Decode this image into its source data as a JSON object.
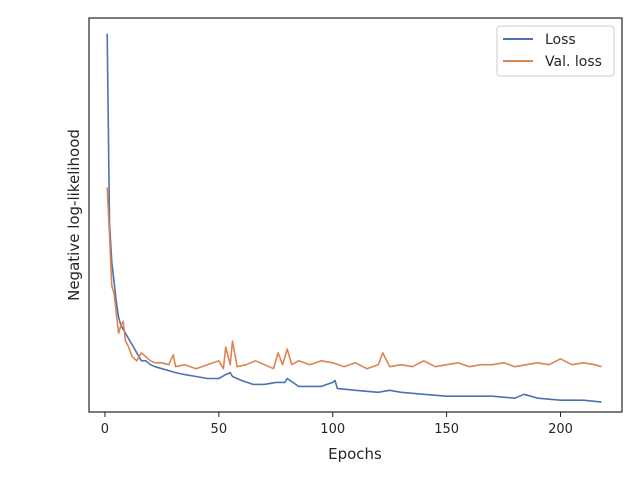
{
  "chart_data": {
    "type": "line",
    "title": "",
    "xlabel": "Epochs",
    "ylabel": "Negative log-likelihood",
    "xlim": [
      -7,
      227
    ],
    "ylim": [
      0,
      100
    ],
    "xticks": [
      0,
      50,
      100,
      150,
      200
    ],
    "yticks": [],
    "grid": false,
    "legend_position": "top-right",
    "series": [
      {
        "name": "Loss",
        "color": "#4c72b0",
        "x": [
          1,
          2,
          3,
          4,
          5,
          6,
          7,
          8,
          9,
          10,
          12,
          14,
          16,
          18,
          20,
          22,
          25,
          28,
          31,
          35,
          40,
          45,
          50,
          53,
          55,
          56,
          60,
          65,
          70,
          75,
          79,
          80,
          85,
          90,
          95,
          100,
          101,
          102,
          110,
          120,
          125,
          130,
          140,
          150,
          160,
          170,
          180,
          184,
          190,
          200,
          210,
          218
        ],
        "values": [
          96,
          48,
          38,
          33,
          28,
          24,
          22,
          21,
          20,
          19,
          17,
          15,
          13,
          13,
          12,
          11.5,
          11,
          10.5,
          10,
          9.5,
          9,
          8.5,
          8.5,
          9.5,
          10,
          9,
          8,
          7,
          7,
          7.5,
          7.5,
          8.5,
          6.5,
          6.5,
          6.5,
          7.5,
          8,
          6,
          5.5,
          5,
          5.5,
          5,
          4.5,
          4,
          4,
          4,
          3.5,
          4.5,
          3.5,
          3,
          3,
          2.5
        ]
      },
      {
        "name": "Val. loss",
        "color": "#dd8452",
        "x": [
          1,
          2,
          3,
          4,
          5,
          6,
          7,
          8,
          9,
          10,
          12,
          14,
          16,
          18,
          20,
          22,
          25,
          28,
          30,
          31,
          35,
          40,
          45,
          50,
          52,
          53,
          55,
          56,
          58,
          62,
          66,
          70,
          74,
          76,
          78,
          80,
          82,
          85,
          90,
          95,
          100,
          105,
          110,
          115,
          120,
          122,
          125,
          130,
          135,
          140,
          145,
          150,
          155,
          160,
          165,
          170,
          175,
          180,
          185,
          190,
          195,
          200,
          205,
          210,
          215,
          218
        ],
        "values": [
          57,
          45,
          32,
          30,
          25,
          20,
          22,
          23,
          18,
          17,
          14,
          13,
          15,
          14,
          13,
          12.5,
          12.5,
          12,
          14.5,
          11.5,
          12,
          11,
          12,
          13,
          11,
          16.5,
          12,
          18,
          11.5,
          12,
          13,
          12,
          11,
          15,
          12,
          16,
          12,
          13,
          12,
          13,
          12.5,
          11.5,
          12.5,
          11,
          12,
          15,
          11.5,
          12,
          11.5,
          13,
          11.5,
          12,
          12.5,
          11.5,
          12,
          12,
          12.5,
          11.5,
          12,
          12.5,
          12,
          13.5,
          12,
          12.5,
          12,
          11.5
        ]
      }
    ]
  }
}
